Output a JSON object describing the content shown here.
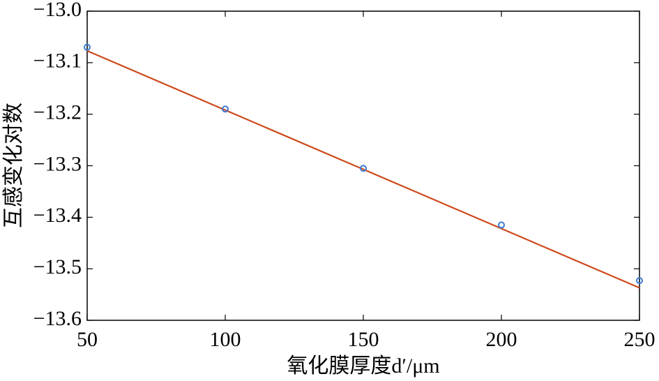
{
  "chart_data": {
    "type": "scatter",
    "xlabel": "氧化膜厚度d′/μm",
    "ylabel": "互感变化对数",
    "x": [
      50,
      100,
      150,
      200,
      250
    ],
    "values": [
      -13.07,
      -13.19,
      -13.305,
      -13.415,
      -13.523
    ],
    "color": "#3a7bd5",
    "fit_line": {
      "x": [
        50,
        250
      ],
      "values": [
        -13.077,
        -13.537
      ],
      "color": "#cc4a1c"
    },
    "xlim": [
      50,
      250
    ],
    "xticks": [
      50,
      100,
      150,
      200,
      250
    ],
    "ylim": [
      -13.6,
      -13.0
    ],
    "yticks": [
      {
        "value": -13.6,
        "label": "−13.6"
      },
      {
        "value": -13.5,
        "label": "−13.5"
      },
      {
        "value": -13.4,
        "label": "−13.4"
      },
      {
        "value": -13.3,
        "label": "−13.3"
      },
      {
        "value": -13.2,
        "label": "−13.2"
      },
      {
        "value": -13.1,
        "label": "−13.1"
      },
      {
        "value": -13.0,
        "label": "−13.0"
      }
    ]
  }
}
